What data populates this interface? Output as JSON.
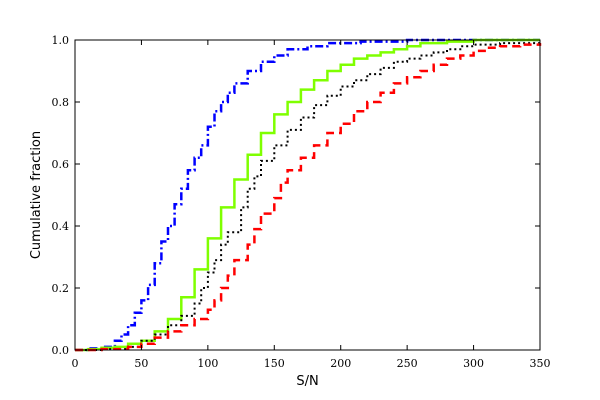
{
  "chart_data": {
    "type": "line",
    "xlabel": "S/N",
    "ylabel": "Cumulative fraction",
    "xlim": [
      0,
      350
    ],
    "ylim": [
      0,
      1.0
    ],
    "xticks": [
      "0",
      "50",
      "100",
      "150",
      "200",
      "250",
      "300",
      "350"
    ],
    "yticks": [
      "0.0",
      "0.2",
      "0.4",
      "0.6",
      "0.8",
      "1.0"
    ],
    "grid": false,
    "series": [
      {
        "style": "dash-dot",
        "color": "#0000ff",
        "steps": [
          [
            0,
            0.0
          ],
          [
            10,
            0.005
          ],
          [
            20,
            0.01
          ],
          [
            30,
            0.03
          ],
          [
            35,
            0.05
          ],
          [
            40,
            0.08
          ],
          [
            45,
            0.12
          ],
          [
            50,
            0.16
          ],
          [
            55,
            0.21
          ],
          [
            60,
            0.28
          ],
          [
            65,
            0.35
          ],
          [
            70,
            0.4
          ],
          [
            75,
            0.47
          ],
          [
            80,
            0.52
          ],
          [
            85,
            0.58
          ],
          [
            90,
            0.62
          ],
          [
            95,
            0.66
          ],
          [
            100,
            0.72
          ],
          [
            105,
            0.77
          ],
          [
            110,
            0.8
          ],
          [
            115,
            0.83
          ],
          [
            120,
            0.86
          ],
          [
            130,
            0.9
          ],
          [
            140,
            0.93
          ],
          [
            150,
            0.95
          ],
          [
            160,
            0.97
          ],
          [
            175,
            0.98
          ],
          [
            190,
            0.99
          ],
          [
            215,
            0.995
          ],
          [
            250,
            1.0
          ],
          [
            350,
            1.0
          ]
        ]
      },
      {
        "style": "solid",
        "color": "#7fff00",
        "steps": [
          [
            0,
            0.0
          ],
          [
            10,
            0.003
          ],
          [
            20,
            0.007
          ],
          [
            30,
            0.01
          ],
          [
            40,
            0.02
          ],
          [
            50,
            0.03
          ],
          [
            60,
            0.06
          ],
          [
            70,
            0.1
          ],
          [
            80,
            0.17
          ],
          [
            90,
            0.26
          ],
          [
            100,
            0.36
          ],
          [
            110,
            0.46
          ],
          [
            120,
            0.55
          ],
          [
            130,
            0.63
          ],
          [
            140,
            0.7
          ],
          [
            150,
            0.76
          ],
          [
            160,
            0.8
          ],
          [
            170,
            0.84
          ],
          [
            180,
            0.87
          ],
          [
            190,
            0.9
          ],
          [
            200,
            0.92
          ],
          [
            210,
            0.94
          ],
          [
            220,
            0.95
          ],
          [
            230,
            0.96
          ],
          [
            240,
            0.97
          ],
          [
            250,
            0.98
          ],
          [
            260,
            0.99
          ],
          [
            280,
            0.995
          ],
          [
            300,
            1.0
          ],
          [
            350,
            1.0
          ]
        ]
      },
      {
        "style": "dotted",
        "color": "#000000",
        "steps": [
          [
            0,
            0.0
          ],
          [
            20,
            0.003
          ],
          [
            40,
            0.01
          ],
          [
            50,
            0.03
          ],
          [
            60,
            0.05
          ],
          [
            70,
            0.08
          ],
          [
            80,
            0.11
          ],
          [
            90,
            0.15
          ],
          [
            95,
            0.2
          ],
          [
            100,
            0.25
          ],
          [
            105,
            0.29
          ],
          [
            110,
            0.34
          ],
          [
            115,
            0.38
          ],
          [
            125,
            0.46
          ],
          [
            130,
            0.52
          ],
          [
            135,
            0.56
          ],
          [
            140,
            0.61
          ],
          [
            150,
            0.66
          ],
          [
            160,
            0.71
          ],
          [
            170,
            0.75
          ],
          [
            180,
            0.79
          ],
          [
            190,
            0.82
          ],
          [
            200,
            0.85
          ],
          [
            210,
            0.87
          ],
          [
            220,
            0.89
          ],
          [
            230,
            0.91
          ],
          [
            240,
            0.93
          ],
          [
            250,
            0.94
          ],
          [
            260,
            0.95
          ],
          [
            270,
            0.96
          ],
          [
            280,
            0.97
          ],
          [
            290,
            0.98
          ],
          [
            300,
            0.985
          ],
          [
            320,
            0.99
          ],
          [
            350,
            1.0
          ]
        ]
      },
      {
        "style": "dashed",
        "color": "#ff0000",
        "steps": [
          [
            0,
            0.0
          ],
          [
            20,
            0.003
          ],
          [
            40,
            0.01
          ],
          [
            50,
            0.02
          ],
          [
            60,
            0.04
          ],
          [
            70,
            0.06
          ],
          [
            80,
            0.08
          ],
          [
            90,
            0.1
          ],
          [
            100,
            0.13
          ],
          [
            105,
            0.16
          ],
          [
            110,
            0.2
          ],
          [
            115,
            0.24
          ],
          [
            120,
            0.29
          ],
          [
            130,
            0.34
          ],
          [
            135,
            0.39
          ],
          [
            140,
            0.44
          ],
          [
            150,
            0.49
          ],
          [
            155,
            0.54
          ],
          [
            160,
            0.58
          ],
          [
            170,
            0.62
          ],
          [
            180,
            0.66
          ],
          [
            190,
            0.7
          ],
          [
            200,
            0.73
          ],
          [
            210,
            0.77
          ],
          [
            220,
            0.8
          ],
          [
            230,
            0.83
          ],
          [
            240,
            0.86
          ],
          [
            250,
            0.88
          ],
          [
            260,
            0.9
          ],
          [
            270,
            0.92
          ],
          [
            280,
            0.94
          ],
          [
            290,
            0.95
          ],
          [
            300,
            0.965
          ],
          [
            310,
            0.975
          ],
          [
            320,
            0.98
          ],
          [
            335,
            0.985
          ],
          [
            350,
            0.99
          ]
        ]
      }
    ]
  }
}
